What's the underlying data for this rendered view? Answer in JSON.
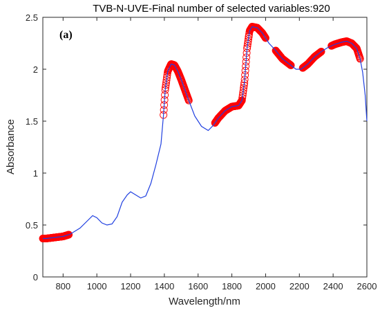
{
  "chart_data": {
    "type": "line",
    "title": "TVB-N-UVE-Final number of selected variables:920",
    "annotation": "(a)",
    "xlabel": "Wavelength/nm",
    "ylabel": "Absorbance",
    "xlim": [
      680,
      2600
    ],
    "ylim": [
      0,
      2.5
    ],
    "xticks": [
      800,
      1000,
      1200,
      1400,
      1600,
      1800,
      2000,
      2200,
      2400,
      2600
    ],
    "yticks": [
      0,
      0.5,
      1,
      1.5,
      2,
      2.5
    ],
    "xtick_labels": [
      "800",
      "1000",
      "1200",
      "1400",
      "1600",
      "1800",
      "2000",
      "2200",
      "2400",
      "2600"
    ],
    "ytick_labels": [
      "0",
      "0.5",
      "1",
      "1.5",
      "2",
      "2.5"
    ],
    "grid": false,
    "colors": {
      "spectrum": "#1f3fe0",
      "selected": "#ff0000",
      "axes": "#262626"
    },
    "spectrum": {
      "x": [
        680,
        700,
        750,
        800,
        840,
        900,
        950,
        975,
        1000,
        1030,
        1060,
        1090,
        1120,
        1150,
        1180,
        1200,
        1230,
        1260,
        1290,
        1320,
        1350,
        1380,
        1395,
        1405,
        1420,
        1440,
        1460,
        1480,
        1500,
        1540,
        1580,
        1620,
        1660,
        1690,
        1720,
        1760,
        1800,
        1840,
        1860,
        1875,
        1890,
        1905,
        1920,
        1950,
        1980,
        2020,
        2060,
        2100,
        2140,
        2180,
        2210,
        2250,
        2290,
        2330,
        2370,
        2410,
        2450,
        2480,
        2510,
        2540,
        2560,
        2575,
        2590,
        2600
      ],
      "y": [
        0.37,
        0.37,
        0.38,
        0.39,
        0.41,
        0.47,
        0.55,
        0.59,
        0.57,
        0.52,
        0.5,
        0.51,
        0.58,
        0.72,
        0.79,
        0.82,
        0.79,
        0.76,
        0.78,
        0.9,
        1.08,
        1.28,
        1.56,
        1.8,
        1.98,
        2.05,
        2.04,
        1.98,
        1.9,
        1.72,
        1.55,
        1.45,
        1.41,
        1.46,
        1.53,
        1.6,
        1.64,
        1.65,
        1.7,
        1.88,
        2.2,
        2.37,
        2.41,
        2.4,
        2.35,
        2.25,
        2.18,
        2.1,
        2.05,
        2.0,
        2.0,
        2.05,
        2.12,
        2.17,
        2.21,
        2.24,
        2.26,
        2.27,
        2.25,
        2.2,
        2.1,
        1.97,
        1.75,
        1.5
      ]
    },
    "selected_ranges": [
      [
        680,
        835
      ],
      [
        1395,
        1545
      ],
      [
        1700,
        1900
      ],
      [
        1900,
        2000
      ],
      [
        2060,
        2150
      ],
      [
        2220,
        2330
      ],
      [
        2390,
        2560
      ]
    ]
  }
}
